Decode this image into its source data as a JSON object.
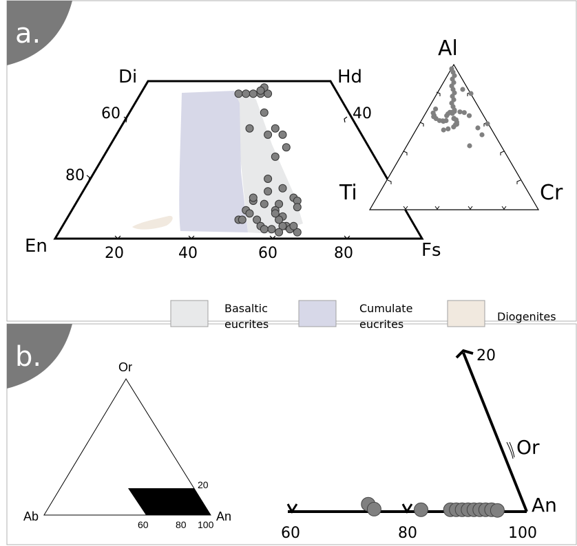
{
  "panel_a": {
    "letter": "a.",
    "quad": {
      "top_left": "Di",
      "top_right": "Hd",
      "bottom_left": "En",
      "bottom_right": "Fs",
      "ticks_bottom": [
        "20",
        "40",
        "60",
        "80"
      ],
      "ticks_left": [
        "60",
        "80"
      ],
      "tick_right": "40"
    },
    "tri": {
      "top": "Al",
      "left": "Ti",
      "right": "Cr"
    },
    "legend": [
      {
        "line1": "Basaltic",
        "line2": "eucrites",
        "color": "#e8e9ea"
      },
      {
        "line1": "Cumulate",
        "line2": "eucrites",
        "color": "#d7d8e8"
      },
      {
        "line1": "Diogenites",
        "line2": "",
        "color": "#f1e9df"
      }
    ],
    "point_color": "#808080"
  },
  "panel_b": {
    "letter": "b.",
    "tri": {
      "top": "Or",
      "left": "Ab",
      "right": "An",
      "tick_right": "20",
      "ticks_bottom": [
        "60",
        "80",
        "100"
      ]
    },
    "zoom": {
      "ticks": [
        "60",
        "80",
        "100"
      ],
      "end_label": "An",
      "axis_label": "Or",
      "axis_tick": "20"
    }
  },
  "chart_data": [
    {
      "type": "scatter",
      "title": "",
      "xlabel": "",
      "ylabel": "",
      "corners": [
        "En",
        "Fs",
        "Di",
        "Hd"
      ],
      "ticks_bottom": [
        20,
        40,
        60,
        80
      ],
      "ticks_left": [
        60,
        80
      ],
      "tick_right": [
        40
      ],
      "series": [
        {
          "points": [
            [
              50,
              46
            ],
            [
              52,
              46
            ],
            [
              54,
              46
            ],
            [
              56,
              46
            ],
            [
              58,
              46
            ],
            [
              57,
              48
            ],
            [
              56,
              47
            ],
            [
              57,
              40
            ],
            [
              60,
              35
            ],
            [
              58,
              33
            ],
            [
              62,
              33
            ],
            [
              63,
              29
            ],
            [
              53,
              35
            ],
            [
              60,
              26
            ],
            [
              58,
              19
            ],
            [
              58,
              15
            ],
            [
              62,
              16
            ],
            [
              65,
              13
            ],
            [
              66,
              12
            ],
            [
              66,
              10
            ],
            [
              61,
              11
            ],
            [
              60,
              9
            ],
            [
              62,
              7
            ],
            [
              63,
              4
            ],
            [
              64,
              3
            ],
            [
              66,
              2
            ],
            [
              65,
              4
            ],
            [
              62,
              4
            ],
            [
              61,
              6
            ],
            [
              60,
              8
            ],
            [
              57,
              11
            ],
            [
              54,
              12
            ],
            [
              52,
              9
            ],
            [
              54,
              13
            ],
            [
              50,
              6
            ],
            [
              51,
              6
            ],
            [
              53,
              8
            ],
            [
              55,
              6
            ],
            [
              56,
              4
            ],
            [
              57,
              3
            ],
            [
              59,
              3
            ],
            [
              61,
              2
            ]
          ]
        }
      ]
    },
    {
      "type": "scatter",
      "title": "",
      "corners": [
        "Al",
        "Ti",
        "Cr"
      ],
      "series": [
        {
          "points_count": 40
        }
      ]
    },
    {
      "type": "scatter",
      "title": "",
      "xlabel": "",
      "ylabel": "",
      "x_ticks": [
        60,
        80,
        100
      ],
      "y_ticks": [
        20
      ],
      "series": [
        {
          "points": [
            [
              73,
              1.2
            ],
            [
              74,
              0.4
            ],
            [
              82,
              0.3
            ],
            [
              87,
              0.3
            ],
            [
              88,
              0.3
            ],
            [
              89,
              0.3
            ],
            [
              90,
              0.3
            ],
            [
              91,
              0.3
            ],
            [
              92,
              0.3
            ],
            [
              93,
              0.3
            ],
            [
              94,
              0.3
            ],
            [
              95,
              0.2
            ]
          ]
        }
      ]
    }
  ]
}
